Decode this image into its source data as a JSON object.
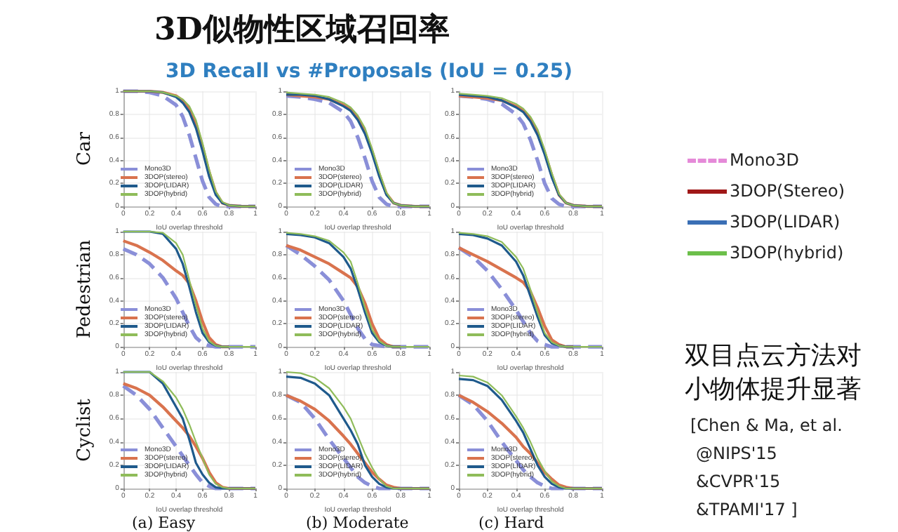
{
  "chart_data": [
    {
      "type": "other",
      "title": "3D似物性区域召回率",
      "subtitle": "3D Recall vs #Proposals (IoU = 0.25)",
      "series": [
        {
          "name": "Mono3D",
          "color": "#e58ad8",
          "line_style": "dashed"
        },
        {
          "name": "3DOP(Stereo)",
          "color": "#a01818",
          "line_style": "solid"
        },
        {
          "name": "3DOP(LIDAR)",
          "color": "#3a6fb5",
          "line_style": "solid"
        },
        {
          "name": "3DOP(hybrid)",
          "color": "#6cbf4a",
          "line_style": "solid"
        }
      ],
      "annotations": [
        "双目点云方法对小物体提升显著",
        "[Chen & Ma, et al.",
        "@NIPS'15",
        "&CVPR'15",
        "&TPAMI'17 ]"
      ]
    },
    {
      "type": "line",
      "ylabel": "Car",
      "xlabel": "IoU overlap threshold",
      "x": [
        0,
        0.1,
        0.2,
        0.3,
        0.4,
        0.45,
        0.5,
        0.55,
        0.6,
        0.65,
        0.7,
        0.75,
        0.8,
        0.9,
        1
      ],
      "xlim": [
        0,
        1
      ],
      "ylim": [
        0,
        1
      ],
      "xticks": [
        0,
        0.2,
        0.4,
        0.6,
        0.8,
        1
      ],
      "yticks": [
        0,
        0.2,
        0.4,
        0.6,
        0.8,
        1
      ],
      "grid": true,
      "legend": "bottom left",
      "series": [
        {
          "name": "Mono3D",
          "color": "#8a8fd8",
          "line_style": "dashed",
          "values": [
            1,
            1,
            0.99,
            0.96,
            0.88,
            0.78,
            0.62,
            0.42,
            0.22,
            0.08,
            0.02,
            0,
            0,
            0,
            0
          ]
        },
        {
          "name": "3DOP(stereo)",
          "color": "#d9734e",
          "values": [
            1,
            1,
            1,
            0.99,
            0.96,
            0.92,
            0.85,
            0.72,
            0.52,
            0.3,
            0.12,
            0.03,
            0.01,
            0,
            0
          ]
        },
        {
          "name": "3DOP(LIDAR)",
          "color": "#1f5a8c",
          "values": [
            1,
            1,
            1,
            0.99,
            0.95,
            0.9,
            0.82,
            0.68,
            0.48,
            0.26,
            0.1,
            0.03,
            0.01,
            0,
            0
          ]
        },
        {
          "name": "3DOP(hybrid)",
          "color": "#8fbc5a",
          "values": [
            1,
            1,
            1,
            0.99,
            0.96,
            0.93,
            0.87,
            0.75,
            0.55,
            0.32,
            0.13,
            0.04,
            0.01,
            0,
            0
          ]
        }
      ]
    },
    {
      "type": "line",
      "xlabel": "IoU overlap threshold",
      "x": [
        0,
        0.1,
        0.2,
        0.3,
        0.4,
        0.45,
        0.5,
        0.55,
        0.6,
        0.65,
        0.7,
        0.75,
        0.8,
        0.9,
        1
      ],
      "xlim": [
        0,
        1
      ],
      "ylim": [
        0,
        1
      ],
      "xticks": [
        0,
        0.2,
        0.4,
        0.6,
        0.8,
        1
      ],
      "yticks": [
        0,
        0.2,
        0.4,
        0.6,
        0.8,
        1
      ],
      "grid": true,
      "legend": "bottom left",
      "series": [
        {
          "name": "Mono3D",
          "color": "#8a8fd8",
          "line_style": "dashed",
          "values": [
            0.96,
            0.95,
            0.93,
            0.9,
            0.82,
            0.74,
            0.6,
            0.42,
            0.22,
            0.08,
            0.02,
            0,
            0,
            0,
            0
          ]
        },
        {
          "name": "3DOP(stereo)",
          "color": "#d9734e",
          "values": [
            0.97,
            0.96,
            0.95,
            0.93,
            0.88,
            0.84,
            0.77,
            0.65,
            0.48,
            0.28,
            0.11,
            0.03,
            0.01,
            0,
            0
          ]
        },
        {
          "name": "3DOP(LIDAR)",
          "color": "#1f5a8c",
          "values": [
            0.97,
            0.97,
            0.96,
            0.93,
            0.87,
            0.83,
            0.75,
            0.63,
            0.46,
            0.26,
            0.1,
            0.03,
            0.01,
            0,
            0
          ]
        },
        {
          "name": "3DOP(hybrid)",
          "color": "#8fbc5a",
          "values": [
            0.99,
            0.98,
            0.97,
            0.95,
            0.9,
            0.86,
            0.79,
            0.68,
            0.5,
            0.3,
            0.12,
            0.03,
            0.01,
            0,
            0
          ]
        }
      ]
    },
    {
      "type": "line",
      "xlabel": "IoU overlap threshold",
      "x": [
        0,
        0.1,
        0.2,
        0.3,
        0.4,
        0.45,
        0.5,
        0.55,
        0.6,
        0.65,
        0.7,
        0.75,
        0.8,
        0.9,
        1
      ],
      "xlim": [
        0,
        1
      ],
      "ylim": [
        0,
        1
      ],
      "xticks": [
        0,
        0.2,
        0.4,
        0.6,
        0.8,
        1
      ],
      "yticks": [
        0,
        0.2,
        0.4,
        0.6,
        0.8,
        1
      ],
      "grid": true,
      "legend": "bottom left",
      "series": [
        {
          "name": "Mono3D",
          "color": "#8a8fd8",
          "line_style": "dashed",
          "values": [
            0.96,
            0.95,
            0.93,
            0.89,
            0.8,
            0.72,
            0.58,
            0.4,
            0.2,
            0.07,
            0.02,
            0,
            0,
            0,
            0
          ]
        },
        {
          "name": "3DOP(stereo)",
          "color": "#d9734e",
          "values": [
            0.96,
            0.95,
            0.94,
            0.92,
            0.87,
            0.83,
            0.76,
            0.64,
            0.47,
            0.27,
            0.1,
            0.03,
            0.01,
            0,
            0
          ]
        },
        {
          "name": "3DOP(LIDAR)",
          "color": "#1f5a8c",
          "values": [
            0.97,
            0.96,
            0.95,
            0.92,
            0.86,
            0.82,
            0.74,
            0.62,
            0.45,
            0.25,
            0.1,
            0.03,
            0.01,
            0,
            0
          ]
        },
        {
          "name": "3DOP(hybrid)",
          "color": "#8fbc5a",
          "values": [
            0.98,
            0.97,
            0.96,
            0.94,
            0.89,
            0.85,
            0.78,
            0.67,
            0.49,
            0.29,
            0.11,
            0.03,
            0.01,
            0,
            0
          ]
        }
      ]
    },
    {
      "type": "line",
      "ylabel": "Pedestrian",
      "xlabel": "IoU overlap threshold",
      "x": [
        0,
        0.1,
        0.2,
        0.3,
        0.4,
        0.45,
        0.5,
        0.55,
        0.6,
        0.65,
        0.7,
        0.75,
        0.8,
        0.9,
        1
      ],
      "xlim": [
        0,
        1
      ],
      "ylim": [
        0,
        1
      ],
      "xticks": [
        0,
        0.2,
        0.4,
        0.6,
        0.8,
        1
      ],
      "yticks": [
        0,
        0.2,
        0.4,
        0.6,
        0.8,
        1
      ],
      "grid": true,
      "legend": "bottom left",
      "series": [
        {
          "name": "Mono3D",
          "color": "#8a8fd8",
          "line_style": "dashed",
          "values": [
            0.85,
            0.8,
            0.72,
            0.6,
            0.42,
            0.3,
            0.18,
            0.08,
            0.03,
            0.01,
            0,
            0,
            0,
            0,
            0
          ]
        },
        {
          "name": "3DOP(stereo)",
          "color": "#d9734e",
          "values": [
            0.92,
            0.88,
            0.82,
            0.75,
            0.66,
            0.62,
            0.55,
            0.4,
            0.22,
            0.08,
            0.02,
            0,
            0,
            null,
            null
          ]
        },
        {
          "name": "3DOP(LIDAR)",
          "color": "#1f5a8c",
          "values": [
            1,
            1,
            1,
            0.98,
            0.85,
            0.72,
            0.52,
            0.3,
            0.12,
            0.04,
            0.01,
            0,
            0,
            null,
            null
          ]
        },
        {
          "name": "3DOP(hybrid)",
          "color": "#8fbc5a",
          "values": [
            1,
            1,
            1,
            0.99,
            0.9,
            0.8,
            0.58,
            0.36,
            0.16,
            0.05,
            0.01,
            0,
            0,
            0,
            0
          ]
        }
      ]
    },
    {
      "type": "line",
      "xlabel": "IoU overlap threshold",
      "x": [
        0,
        0.1,
        0.2,
        0.3,
        0.4,
        0.45,
        0.5,
        0.55,
        0.6,
        0.65,
        0.7,
        0.75,
        0.8,
        0.9,
        1
      ],
      "xlim": [
        0,
        1
      ],
      "ylim": [
        0,
        1
      ],
      "xticks": [
        0,
        0.2,
        0.4,
        0.6,
        0.8,
        1
      ],
      "yticks": [
        0,
        0.2,
        0.4,
        0.6,
        0.8,
        1
      ],
      "grid": true,
      "legend": "bottom left",
      "series": [
        {
          "name": "Mono3D",
          "color": "#8a8fd8",
          "line_style": "dashed",
          "values": [
            0.88,
            0.8,
            0.7,
            0.58,
            0.4,
            0.28,
            0.16,
            0.07,
            0.02,
            0.01,
            0,
            0,
            0,
            0,
            0
          ]
        },
        {
          "name": "3DOP(stereo)",
          "color": "#d9734e",
          "values": [
            0.88,
            0.84,
            0.78,
            0.72,
            0.64,
            0.6,
            0.52,
            0.38,
            0.2,
            0.07,
            0.02,
            0,
            0,
            null,
            null
          ]
        },
        {
          "name": "3DOP(LIDAR)",
          "color": "#1f5a8c",
          "values": [
            0.98,
            0.97,
            0.95,
            0.9,
            0.78,
            0.68,
            0.5,
            0.3,
            0.12,
            0.04,
            0.01,
            0,
            0,
            null,
            null
          ]
        },
        {
          "name": "3DOP(hybrid)",
          "color": "#8fbc5a",
          "values": [
            0.99,
            0.98,
            0.96,
            0.92,
            0.82,
            0.74,
            0.55,
            0.34,
            0.15,
            0.05,
            0.01,
            0,
            0,
            0,
            0
          ]
        }
      ]
    },
    {
      "type": "line",
      "xlabel": "IoU overlap threshold",
      "x": [
        0,
        0.1,
        0.2,
        0.3,
        0.4,
        0.45,
        0.5,
        0.55,
        0.6,
        0.65,
        0.7,
        0.75,
        0.8,
        0.9,
        1
      ],
      "xlim": [
        0,
        1
      ],
      "ylim": [
        0,
        1
      ],
      "xticks": [
        0,
        0.2,
        0.4,
        0.6,
        0.8,
        1
      ],
      "yticks": [
        0,
        0.2,
        0.4,
        0.6,
        0.8,
        1
      ],
      "grid": true,
      "legend": "bottom left",
      "series": [
        {
          "name": "Mono3D",
          "color": "#8a8fd8",
          "line_style": "dashed",
          "values": [
            0.86,
            0.78,
            0.66,
            0.5,
            0.32,
            0.22,
            0.12,
            0.05,
            0.02,
            0,
            0,
            0,
            0,
            0,
            0
          ]
        },
        {
          "name": "3DOP(stereo)",
          "color": "#d9734e",
          "values": [
            0.86,
            0.8,
            0.74,
            0.67,
            0.6,
            0.56,
            0.48,
            0.34,
            0.18,
            0.06,
            0.02,
            0,
            0,
            null,
            null
          ]
        },
        {
          "name": "3DOP(LIDAR)",
          "color": "#1f5a8c",
          "values": [
            0.98,
            0.97,
            0.94,
            0.88,
            0.74,
            0.62,
            0.44,
            0.26,
            0.1,
            0.03,
            0.01,
            0,
            0,
            null,
            null
          ]
        },
        {
          "name": "3DOP(hybrid)",
          "color": "#8fbc5a",
          "values": [
            0.99,
            0.98,
            0.96,
            0.91,
            0.78,
            0.68,
            0.5,
            0.3,
            0.12,
            0.04,
            0.01,
            0,
            0,
            0,
            0
          ]
        }
      ]
    },
    {
      "type": "line",
      "ylabel": "Cyclist",
      "xlabel": "IoU overlap threshold",
      "title": "(a) Easy",
      "x": [
        0,
        0.1,
        0.2,
        0.3,
        0.4,
        0.45,
        0.5,
        0.55,
        0.6,
        0.65,
        0.7,
        0.75,
        0.8,
        0.9,
        1
      ],
      "xlim": [
        0,
        1
      ],
      "ylim": [
        0,
        1
      ],
      "xticks": [
        0,
        0.2,
        0.4,
        0.6,
        0.8,
        1
      ],
      "yticks": [
        0,
        0.2,
        0.4,
        0.6,
        0.8,
        1
      ],
      "grid": true,
      "legend": "bottom left",
      "series": [
        {
          "name": "Mono3D",
          "color": "#8a8fd8",
          "line_style": "dashed",
          "values": [
            0.88,
            0.8,
            0.68,
            0.52,
            0.36,
            0.28,
            0.2,
            0.12,
            0.05,
            0.02,
            0,
            0,
            0,
            0,
            0
          ]
        },
        {
          "name": "3DOP(stereo)",
          "color": "#d9734e",
          "values": [
            0.9,
            0.86,
            0.8,
            0.7,
            0.58,
            0.52,
            0.45,
            0.36,
            0.26,
            0.14,
            0.05,
            0.01,
            0,
            0,
            0
          ]
        },
        {
          "name": "3DOP(LIDAR)",
          "color": "#1f5a8c",
          "values": [
            1,
            1,
            1,
            0.9,
            0.7,
            0.6,
            0.42,
            0.22,
            0.12,
            0.05,
            0.01,
            0,
            0,
            0,
            0
          ]
        },
        {
          "name": "3DOP(hybrid)",
          "color": "#8fbc5a",
          "values": [
            1,
            1,
            1,
            0.92,
            0.78,
            0.68,
            0.55,
            0.4,
            0.26,
            0.12,
            0.04,
            0.01,
            0,
            0,
            0
          ]
        }
      ]
    },
    {
      "type": "line",
      "xlabel": "IoU overlap threshold",
      "title": "(b) Moderate",
      "x": [
        0,
        0.1,
        0.2,
        0.3,
        0.4,
        0.45,
        0.5,
        0.55,
        0.6,
        0.65,
        0.7,
        0.75,
        0.8,
        0.9,
        1
      ],
      "xlim": [
        0,
        1
      ],
      "ylim": [
        0,
        1
      ],
      "xticks": [
        0,
        0.2,
        0.4,
        0.6,
        0.8,
        1
      ],
      "yticks": [
        0,
        0.2,
        0.4,
        0.6,
        0.8,
        1
      ],
      "grid": true,
      "legend": "bottom left",
      "series": [
        {
          "name": "Mono3D",
          "color": "#8a8fd8",
          "line_style": "dashed",
          "values": [
            0.8,
            0.74,
            0.6,
            0.42,
            0.26,
            0.18,
            0.1,
            0.05,
            0.02,
            0,
            0,
            0,
            0,
            0,
            0
          ]
        },
        {
          "name": "3DOP(stereo)",
          "color": "#d9734e",
          "values": [
            0.8,
            0.75,
            0.68,
            0.58,
            0.45,
            0.38,
            0.3,
            0.22,
            0.14,
            0.08,
            0.03,
            0.01,
            0,
            0,
            0
          ]
        },
        {
          "name": "3DOP(LIDAR)",
          "color": "#1f5a8c",
          "values": [
            0.96,
            0.95,
            0.9,
            0.8,
            0.6,
            0.5,
            0.38,
            0.2,
            0.1,
            0.04,
            0.01,
            0,
            0,
            0,
            0
          ]
        },
        {
          "name": "3DOP(hybrid)",
          "color": "#8fbc5a",
          "values": [
            1,
            0.99,
            0.95,
            0.86,
            0.7,
            0.6,
            0.45,
            0.3,
            0.18,
            0.08,
            0.02,
            0,
            0,
            0,
            0
          ]
        }
      ]
    },
    {
      "type": "line",
      "xlabel": "IoU overlap threshold",
      "title": "(c) Hard",
      "x": [
        0,
        0.1,
        0.2,
        0.3,
        0.4,
        0.45,
        0.5,
        0.55,
        0.6,
        0.65,
        0.7,
        0.75,
        0.8,
        0.9,
        1
      ],
      "xlim": [
        0,
        1
      ],
      "ylim": [
        0,
        1
      ],
      "xticks": [
        0,
        0.2,
        0.4,
        0.6,
        0.8,
        1
      ],
      "yticks": [
        0,
        0.2,
        0.4,
        0.6,
        0.8,
        1
      ],
      "grid": true,
      "legend": "bottom left",
      "series": [
        {
          "name": "Mono3D",
          "color": "#8a8fd8",
          "line_style": "dashed",
          "values": [
            0.8,
            0.72,
            0.58,
            0.4,
            0.24,
            0.16,
            0.1,
            0.05,
            0.02,
            0,
            0,
            0,
            0,
            0,
            0
          ]
        },
        {
          "name": "3DOP(stereo)",
          "color": "#d9734e",
          "values": [
            0.8,
            0.74,
            0.66,
            0.56,
            0.44,
            0.36,
            0.3,
            0.22,
            0.14,
            0.08,
            0.03,
            0.01,
            0,
            0,
            0
          ]
        },
        {
          "name": "3DOP(LIDAR)",
          "color": "#1f5a8c",
          "values": [
            0.94,
            0.93,
            0.88,
            0.76,
            0.58,
            0.48,
            0.34,
            0.2,
            0.1,
            0.04,
            0.01,
            0,
            0,
            0,
            0
          ]
        },
        {
          "name": "3DOP(hybrid)",
          "color": "#8fbc5a",
          "values": [
            0.97,
            0.96,
            0.91,
            0.8,
            0.62,
            0.52,
            0.4,
            0.26,
            0.15,
            0.06,
            0.02,
            0,
            0,
            0,
            0
          ]
        }
      ]
    }
  ]
}
